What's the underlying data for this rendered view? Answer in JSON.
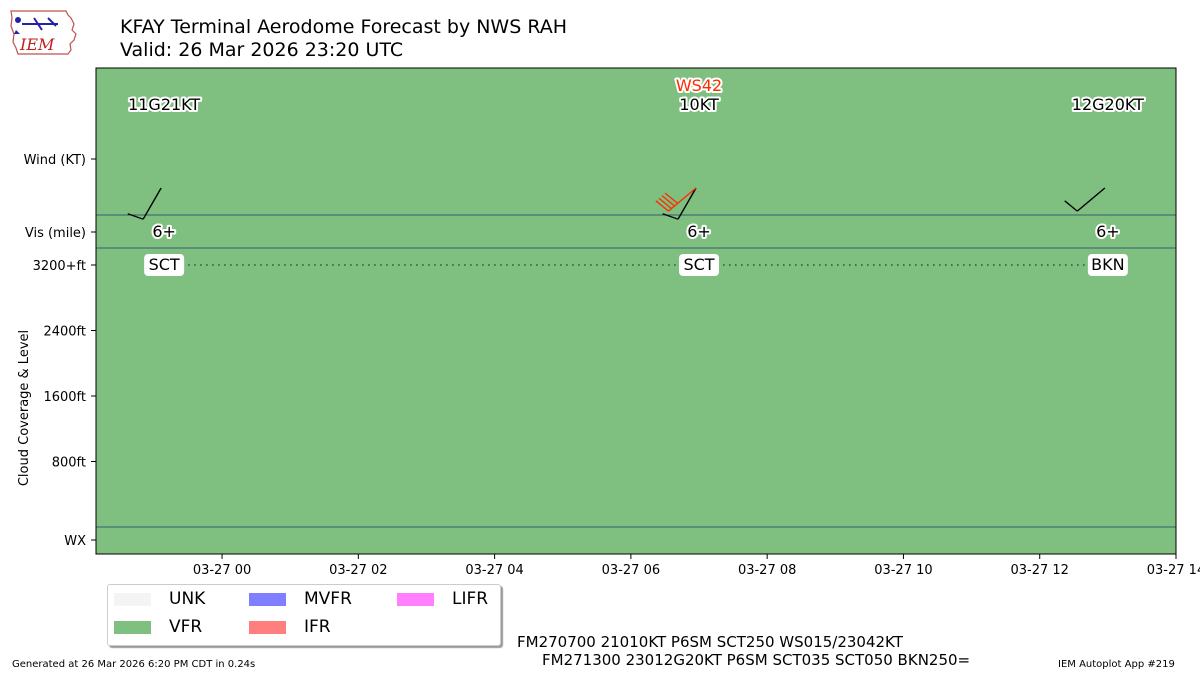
{
  "header": {
    "title": "KFAY Terminal Aerodome Forecast by NWS RAH",
    "valid": "Valid: 26 Mar 2026 23:20 UTC"
  },
  "logo": {
    "text": "IEM"
  },
  "colors": {
    "vfr": "#7fbf7f",
    "unk": "#f4f4f4",
    "mvfr": "#7f7fff",
    "ifr": "#ff7f7f",
    "lifr": "#ff7fff",
    "barb": "#000000",
    "shear": "#ff2a00",
    "cloud_line": "#2a7a4a"
  },
  "chart_data": {
    "type": "timeline",
    "x": {
      "ticks": [
        "03-27 00",
        "03-27 02",
        "03-27 04",
        "03-27 06",
        "03-27 08",
        "03-27 10",
        "03-27 12",
        "03-27 14"
      ],
      "range_hours": [
        -1.85,
        14.0
      ]
    },
    "y_labels": {
      "wind": "Wind (KT)",
      "vis": "Vis (mile)",
      "cloud_ticks": [
        "3200+ft",
        "2400ft",
        "1600ft",
        "800ft"
      ],
      "cloud_values": [
        3200,
        2400,
        1600,
        800
      ],
      "cloud_axis_label": "Cloud Coverage & Level",
      "wx": "WX"
    },
    "flight_category": "VFR",
    "forecasts": [
      {
        "hour": -0.85,
        "wind_label": "11G21KT",
        "dir": 210,
        "speed": 11,
        "gust": 21,
        "vis": "6+",
        "cloud": "SCT",
        "cloud_level": 3200,
        "shear": ""
      },
      {
        "hour": 7.0,
        "wind_label": "10KT",
        "dir": 210,
        "speed": 10,
        "gust": null,
        "vis": "6+",
        "cloud": "SCT",
        "cloud_level": 3200,
        "shear": "WS42",
        "shear_dir": 230,
        "shear_speed": 42
      },
      {
        "hour": 13.0,
        "wind_label": "12G20KT",
        "dir": 230,
        "speed": 12,
        "gust": 20,
        "vis": "6+",
        "cloud": "BKN",
        "cloud_level": 3200,
        "shear": ""
      }
    ]
  },
  "legend": [
    {
      "label": "UNK",
      "color": "#f4f4f4"
    },
    {
      "label": "VFR",
      "color": "#7fbf7f"
    },
    {
      "label": "MVFR",
      "color": "#7f7fff"
    },
    {
      "label": "IFR",
      "color": "#ff7f7f"
    },
    {
      "label": "LIFR",
      "color": "#ff7fff"
    }
  ],
  "taf_lines": [
    "FM270700 21010KT P6SM SCT250 WS015/23042KT",
    "FM271300 23012G20KT P6SM SCT035 SCT050 BKN250="
  ],
  "footer": {
    "generated": "Generated at 26 Mar 2026 6:20 PM CDT in 0.24s",
    "app": "IEM Autoplot App #219"
  }
}
